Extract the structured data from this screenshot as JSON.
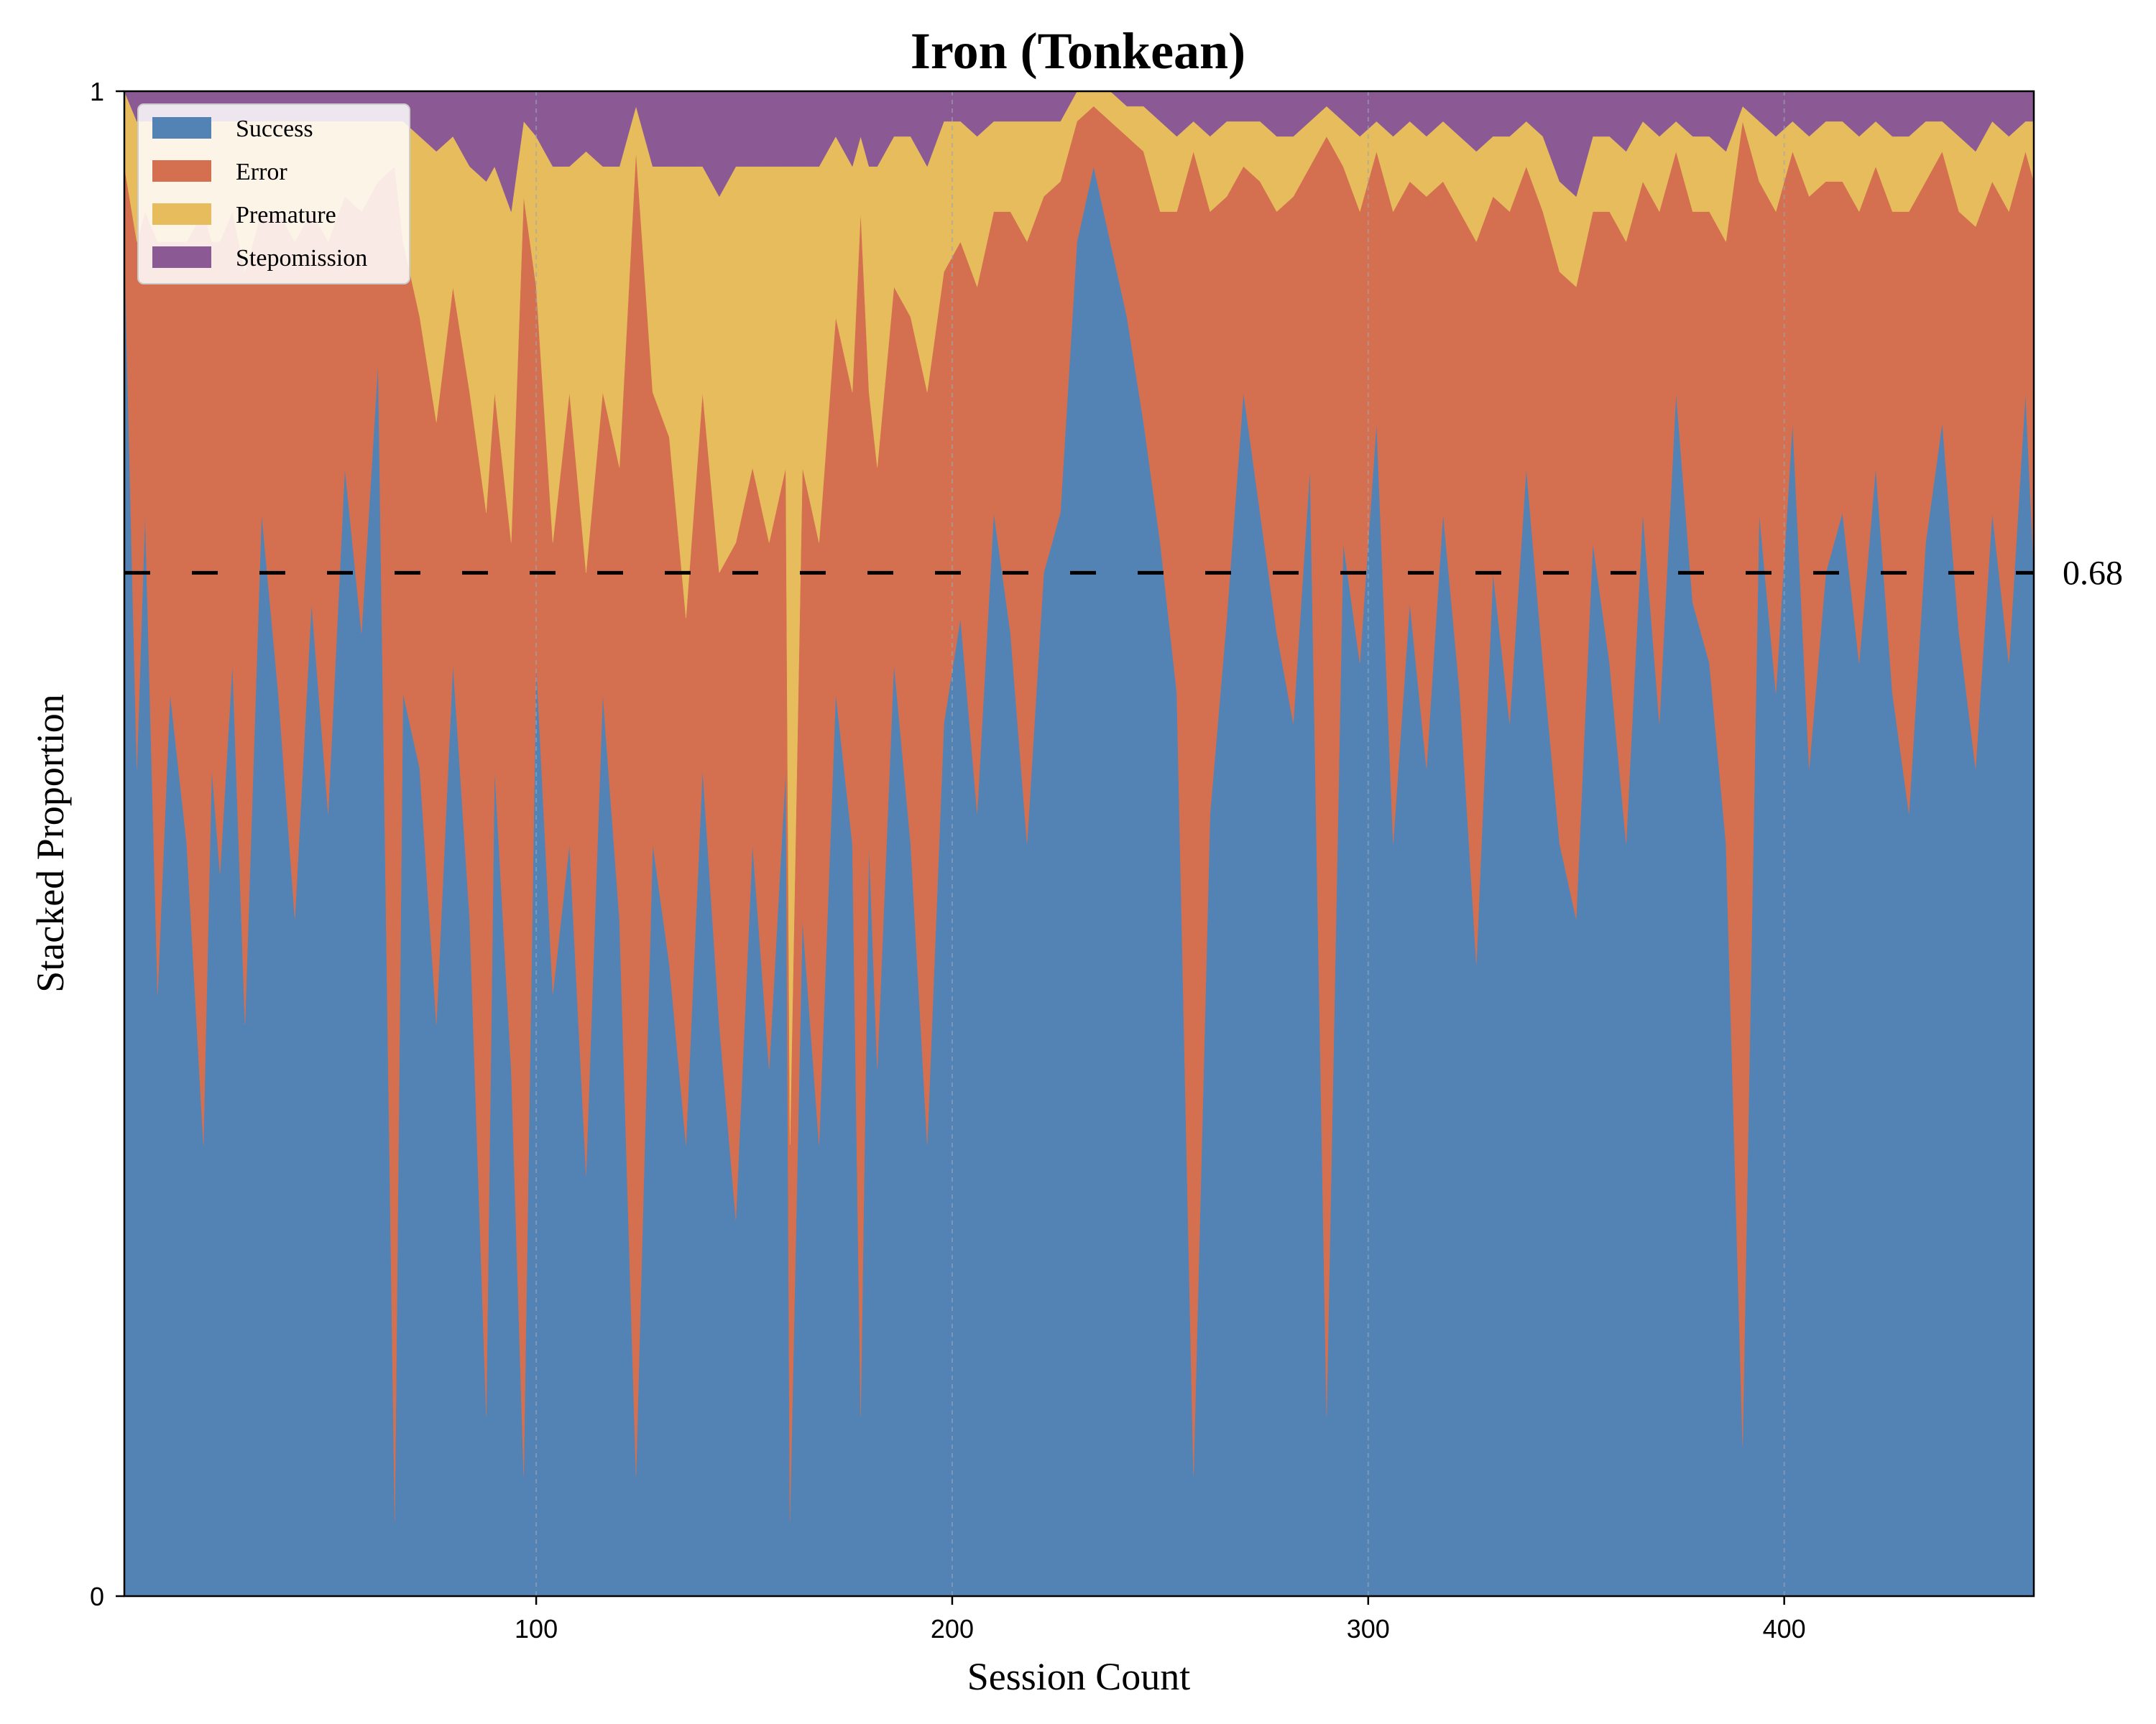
{
  "chart_data": {
    "type": "area",
    "stacked": true,
    "title": "Iron (Tonkean)",
    "xlabel": "Session Count",
    "ylabel": "Stacked Proportion",
    "xlim": [
      1,
      460
    ],
    "ylim": [
      0,
      1
    ],
    "x_ticks": [
      100,
      200,
      300,
      400
    ],
    "y_ticks": [
      0,
      1
    ],
    "y_tick_labels": [
      "0",
      "1"
    ],
    "reference_line": {
      "y": 0.68,
      "label": "0.68",
      "style": "dashed",
      "color": "#000000"
    },
    "vertical_gridlines": [
      100,
      200,
      300,
      400
    ],
    "legend": {
      "placement": "top-left",
      "entries": [
        {
          "name": "Success",
          "color": "#5383b5"
        },
        {
          "name": "Error",
          "color": "#d4704f"
        },
        {
          "name": "Premature",
          "color": "#e6bc5c"
        },
        {
          "name": "Stepomission",
          "color": "#8b5a95"
        }
      ]
    },
    "sampling_note": "values read per session at breakpoints; sessions between breakpoints interpolate",
    "series": [
      {
        "name": "Success",
        "x": [
          1,
          4,
          6,
          9,
          12,
          16,
          20,
          22,
          24,
          27,
          30,
          34,
          38,
          42,
          46,
          50,
          54,
          58,
          62,
          66,
          68,
          72,
          76,
          80,
          84,
          88,
          90,
          94,
          97,
          100,
          104,
          108,
          112,
          116,
          120,
          124,
          128,
          132,
          136,
          140,
          144,
          148,
          152,
          156,
          160,
          161,
          164,
          168,
          172,
          176,
          178,
          180,
          182,
          186,
          190,
          194,
          198,
          202,
          206,
          210,
          214,
          218,
          222,
          226,
          230,
          234,
          238,
          242,
          246,
          250,
          254,
          258,
          262,
          266,
          270,
          274,
          278,
          282,
          286,
          290,
          294,
          298,
          302,
          306,
          310,
          314,
          318,
          322,
          326,
          330,
          334,
          338,
          342,
          346,
          350,
          354,
          358,
          362,
          366,
          370,
          374,
          378,
          382,
          386,
          390,
          394,
          398,
          402,
          406,
          410,
          414,
          418,
          422,
          426,
          430,
          434,
          438,
          442,
          446,
          450,
          454,
          458,
          460
        ],
        "values": [
          0.9,
          0.55,
          0.72,
          0.4,
          0.6,
          0.5,
          0.3,
          0.55,
          0.48,
          0.62,
          0.38,
          0.72,
          0.6,
          0.45,
          0.66,
          0.52,
          0.75,
          0.64,
          0.82,
          0.05,
          0.6,
          0.55,
          0.38,
          0.62,
          0.45,
          0.12,
          0.55,
          0.35,
          0.08,
          0.62,
          0.4,
          0.5,
          0.28,
          0.6,
          0.45,
          0.08,
          0.5,
          0.42,
          0.3,
          0.55,
          0.38,
          0.25,
          0.5,
          0.35,
          0.55,
          0.05,
          0.45,
          0.3,
          0.6,
          0.5,
          0.12,
          0.5,
          0.35,
          0.62,
          0.5,
          0.3,
          0.58,
          0.65,
          0.52,
          0.72,
          0.64,
          0.5,
          0.68,
          0.72,
          0.9,
          0.95,
          0.9,
          0.85,
          0.78,
          0.7,
          0.6,
          0.08,
          0.52,
          0.65,
          0.8,
          0.72,
          0.64,
          0.58,
          0.75,
          0.12,
          0.7,
          0.62,
          0.78,
          0.5,
          0.66,
          0.55,
          0.72,
          0.6,
          0.42,
          0.68,
          0.58,
          0.75,
          0.62,
          0.5,
          0.45,
          0.7,
          0.62,
          0.5,
          0.72,
          0.58,
          0.8,
          0.66,
          0.62,
          0.5,
          0.1,
          0.72,
          0.6,
          0.78,
          0.55,
          0.68,
          0.72,
          0.62,
          0.75,
          0.6,
          0.52,
          0.7,
          0.78,
          0.64,
          0.55,
          0.72,
          0.62,
          0.8,
          0.68
        ]
      },
      {
        "name": "Error",
        "x": [
          1,
          4,
          6,
          9,
          12,
          16,
          20,
          22,
          24,
          27,
          30,
          34,
          38,
          42,
          46,
          50,
          54,
          58,
          62,
          66,
          68,
          72,
          76,
          80,
          84,
          88,
          90,
          94,
          97,
          100,
          104,
          108,
          112,
          116,
          120,
          124,
          128,
          132,
          136,
          140,
          144,
          148,
          152,
          156,
          160,
          161,
          164,
          168,
          172,
          176,
          178,
          180,
          182,
          186,
          190,
          194,
          198,
          202,
          206,
          210,
          214,
          218,
          222,
          226,
          230,
          234,
          238,
          242,
          246,
          250,
          254,
          258,
          262,
          266,
          270,
          274,
          278,
          282,
          286,
          290,
          294,
          298,
          302,
          306,
          310,
          314,
          318,
          322,
          326,
          330,
          334,
          338,
          342,
          346,
          350,
          354,
          358,
          362,
          366,
          370,
          374,
          378,
          382,
          386,
          390,
          394,
          398,
          402,
          406,
          410,
          414,
          418,
          422,
          426,
          430,
          434,
          438,
          442,
          446,
          450,
          454,
          458,
          460
        ],
        "values": [
          0.05,
          0.35,
          0.2,
          0.5,
          0.3,
          0.4,
          0.62,
          0.35,
          0.42,
          0.3,
          0.5,
          0.2,
          0.32,
          0.45,
          0.26,
          0.38,
          0.18,
          0.28,
          0.12,
          0.9,
          0.3,
          0.3,
          0.4,
          0.25,
          0.35,
          0.6,
          0.25,
          0.35,
          0.85,
          0.25,
          0.3,
          0.3,
          0.4,
          0.2,
          0.3,
          0.88,
          0.3,
          0.35,
          0.35,
          0.25,
          0.3,
          0.45,
          0.25,
          0.35,
          0.2,
          0.25,
          0.3,
          0.4,
          0.25,
          0.3,
          0.8,
          0.3,
          0.4,
          0.25,
          0.35,
          0.5,
          0.3,
          0.25,
          0.35,
          0.2,
          0.28,
          0.4,
          0.25,
          0.22,
          0.08,
          0.04,
          0.08,
          0.12,
          0.18,
          0.22,
          0.32,
          0.88,
          0.4,
          0.28,
          0.15,
          0.22,
          0.28,
          0.35,
          0.2,
          0.85,
          0.25,
          0.3,
          0.18,
          0.42,
          0.28,
          0.38,
          0.22,
          0.32,
          0.48,
          0.25,
          0.34,
          0.2,
          0.3,
          0.38,
          0.42,
          0.22,
          0.3,
          0.4,
          0.22,
          0.34,
          0.16,
          0.26,
          0.3,
          0.4,
          0.88,
          0.22,
          0.32,
          0.18,
          0.38,
          0.26,
          0.22,
          0.3,
          0.2,
          0.32,
          0.4,
          0.24,
          0.18,
          0.28,
          0.36,
          0.22,
          0.3,
          0.16,
          0.26
        ]
      },
      {
        "name": "Premature",
        "x": [
          1,
          4,
          6,
          9,
          12,
          16,
          20,
          22,
          24,
          27,
          30,
          34,
          38,
          42,
          46,
          50,
          54,
          58,
          62,
          66,
          68,
          72,
          76,
          80,
          84,
          88,
          90,
          94,
          97,
          100,
          104,
          108,
          112,
          116,
          120,
          124,
          128,
          132,
          136,
          140,
          144,
          148,
          152,
          156,
          160,
          161,
          164,
          168,
          172,
          176,
          178,
          180,
          182,
          186,
          190,
          194,
          198,
          202,
          206,
          210,
          214,
          218,
          222,
          226,
          230,
          234,
          238,
          242,
          246,
          250,
          254,
          258,
          262,
          266,
          270,
          274,
          278,
          282,
          286,
          290,
          294,
          298,
          302,
          306,
          310,
          314,
          318,
          322,
          326,
          330,
          334,
          338,
          342,
          346,
          350,
          354,
          358,
          362,
          366,
          370,
          374,
          378,
          382,
          386,
          390,
          394,
          398,
          402,
          406,
          410,
          414,
          418,
          422,
          426,
          430,
          434,
          438,
          442,
          446,
          450,
          454,
          458,
          460
        ],
        "values": [
          0.05,
          0.08,
          0.06,
          0.08,
          0.08,
          0.08,
          0.06,
          0.08,
          0.08,
          0.06,
          0.1,
          0.06,
          0.06,
          0.08,
          0.06,
          0.08,
          0.05,
          0.06,
          0.04,
          0.03,
          0.08,
          0.12,
          0.18,
          0.1,
          0.15,
          0.22,
          0.15,
          0.22,
          0.05,
          0.1,
          0.25,
          0.15,
          0.28,
          0.15,
          0.2,
          0.03,
          0.15,
          0.18,
          0.3,
          0.15,
          0.25,
          0.25,
          0.2,
          0.25,
          0.2,
          0.65,
          0.2,
          0.25,
          0.12,
          0.15,
          0.05,
          0.15,
          0.2,
          0.1,
          0.12,
          0.15,
          0.1,
          0.08,
          0.1,
          0.06,
          0.06,
          0.08,
          0.05,
          0.04,
          0.02,
          0.01,
          0.02,
          0.02,
          0.03,
          0.06,
          0.05,
          0.02,
          0.05,
          0.05,
          0.03,
          0.04,
          0.05,
          0.04,
          0.03,
          0.02,
          0.03,
          0.05,
          0.02,
          0.05,
          0.04,
          0.04,
          0.04,
          0.05,
          0.06,
          0.04,
          0.05,
          0.03,
          0.05,
          0.06,
          0.06,
          0.05,
          0.05,
          0.06,
          0.04,
          0.05,
          0.02,
          0.05,
          0.05,
          0.06,
          0.01,
          0.04,
          0.05,
          0.02,
          0.04,
          0.04,
          0.04,
          0.05,
          0.03,
          0.05,
          0.05,
          0.04,
          0.02,
          0.05,
          0.05,
          0.04,
          0.05,
          0.02,
          0.04
        ]
      },
      {
        "name": "Stepomission",
        "x": [
          1,
          4,
          6,
          9,
          12,
          16,
          20,
          22,
          24,
          27,
          30,
          34,
          38,
          42,
          46,
          50,
          54,
          58,
          62,
          66,
          68,
          72,
          76,
          80,
          84,
          88,
          90,
          94,
          97,
          100,
          104,
          108,
          112,
          116,
          120,
          124,
          128,
          132,
          136,
          140,
          144,
          148,
          152,
          156,
          160,
          161,
          164,
          168,
          172,
          176,
          178,
          180,
          182,
          186,
          190,
          194,
          198,
          202,
          206,
          210,
          214,
          218,
          222,
          226,
          230,
          234,
          238,
          242,
          246,
          250,
          254,
          258,
          262,
          266,
          270,
          274,
          278,
          282,
          286,
          290,
          294,
          298,
          302,
          306,
          310,
          314,
          318,
          322,
          326,
          330,
          334,
          338,
          342,
          346,
          350,
          354,
          358,
          362,
          366,
          370,
          374,
          378,
          382,
          386,
          390,
          394,
          398,
          402,
          406,
          410,
          414,
          418,
          422,
          426,
          430,
          434,
          438,
          442,
          446,
          450,
          454,
          458,
          460
        ],
        "values": [
          0.0,
          0.02,
          0.02,
          0.02,
          0.02,
          0.02,
          0.02,
          0.02,
          0.02,
          0.02,
          0.02,
          0.02,
          0.02,
          0.02,
          0.02,
          0.02,
          0.02,
          0.02,
          0.02,
          0.02,
          0.02,
          0.03,
          0.04,
          0.03,
          0.05,
          0.06,
          0.05,
          0.08,
          0.02,
          0.03,
          0.05,
          0.05,
          0.04,
          0.05,
          0.05,
          0.01,
          0.05,
          0.05,
          0.05,
          0.05,
          0.07,
          0.05,
          0.05,
          0.05,
          0.05,
          0.05,
          0.05,
          0.05,
          0.03,
          0.05,
          0.03,
          0.05,
          0.05,
          0.03,
          0.03,
          0.05,
          0.02,
          0.02,
          0.03,
          0.02,
          0.02,
          0.02,
          0.02,
          0.02,
          0.0,
          0.0,
          0.0,
          0.01,
          0.01,
          0.02,
          0.03,
          0.02,
          0.03,
          0.02,
          0.02,
          0.02,
          0.03,
          0.03,
          0.02,
          0.01,
          0.02,
          0.03,
          0.02,
          0.03,
          0.02,
          0.03,
          0.02,
          0.03,
          0.04,
          0.03,
          0.03,
          0.02,
          0.03,
          0.06,
          0.07,
          0.03,
          0.03,
          0.04,
          0.02,
          0.03,
          0.02,
          0.03,
          0.03,
          0.04,
          0.01,
          0.02,
          0.03,
          0.02,
          0.03,
          0.02,
          0.02,
          0.03,
          0.02,
          0.03,
          0.03,
          0.02,
          0.02,
          0.03,
          0.04,
          0.02,
          0.03,
          0.02,
          0.02
        ]
      }
    ]
  }
}
